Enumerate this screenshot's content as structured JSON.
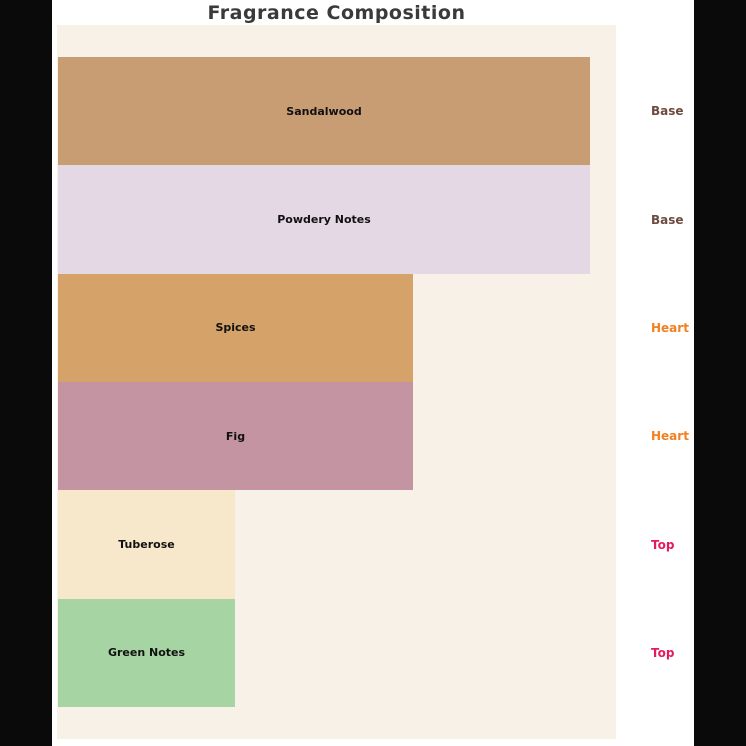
{
  "title": "Fragrance Composition",
  "colors": {
    "canvas_background": "#0A0A0A",
    "figure_background": "#FFFFFF",
    "plot_background": "#F7F1E8",
    "title_text": "#3A3A3A",
    "bar_label_text": "#111111"
  },
  "chart_data": {
    "type": "bar",
    "orientation": "horizontal",
    "title": "Fragrance Composition",
    "categories": [
      "Sandalwood",
      "Powdery Notes",
      "Spices",
      "Fig",
      "Tuberose",
      "Green Notes"
    ],
    "values": [
      30,
      30,
      20,
      20,
      10,
      10
    ],
    "bar_colors": [
      "#C89D74",
      "#E5D8E5",
      "#D5A269",
      "#C494A3",
      "#F7E7CB",
      "#A6D4A2"
    ],
    "stage_labels": [
      "Base",
      "Base",
      "Heart",
      "Heart",
      "Top",
      "Top"
    ],
    "stage_colors": {
      "Base": "#6D4B3F",
      "Heart": "#F28020",
      "Top": "#E41A60"
    },
    "xlabel": "",
    "ylabel": "",
    "xlim": [
      0,
      31.5
    ],
    "axis_ticks_visible": false,
    "grid": false,
    "legend": false,
    "bar_label_position": "center-inside",
    "stage_label_position": "right-of-plot"
  }
}
